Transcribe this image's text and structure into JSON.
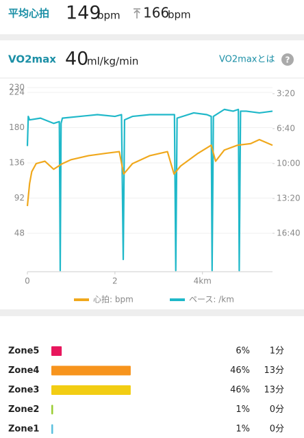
{
  "summary": {
    "label": "平均心拍",
    "average": "149",
    "average_unit": "bpm",
    "max": "166",
    "max_unit": "bpm"
  },
  "vo2max": {
    "label": "VO2max",
    "value": "40",
    "unit": "ml/kg/min",
    "link": "VO2maxとは",
    "help_icon": "?"
  },
  "chart_data": {
    "type": "line",
    "xlim": [
      0,
      5.6
    ],
    "xticks": [
      0,
      2,
      {
        "value": 4,
        "label": "4km"
      }
    ],
    "ylim": [
      0,
      230
    ],
    "yticks": [
      48,
      92,
      136,
      180,
      224,
      230
    ],
    "y2lim": [
      1220,
      165
    ],
    "y2ticks": [
      {
        "value": 200,
        "label": "3:20"
      },
      {
        "value": 400,
        "label": "6:40"
      },
      {
        "value": 600,
        "label": "10:00"
      },
      {
        "value": 800,
        "label": "13:20"
      },
      {
        "value": 1000,
        "label": "16:40"
      }
    ],
    "grid": true,
    "series": [
      {
        "name": "心拍: bpm",
        "color": "#f0a81c",
        "x": [
          0,
          0.05,
          0.1,
          0.2,
          0.4,
          0.6,
          0.8,
          1.0,
          1.4,
          1.8,
          2.1,
          2.2,
          2.4,
          2.8,
          3.2,
          3.35,
          3.5,
          3.9,
          4.2,
          4.3,
          4.5,
          4.8,
          5.1,
          5.3,
          5.6
        ],
        "values": [
          82,
          110,
          125,
          135,
          138,
          128,
          135,
          140,
          145,
          148,
          150,
          122,
          135,
          145,
          150,
          122,
          132,
          148,
          158,
          138,
          152,
          158,
          160,
          165,
          158
        ]
      },
      {
        "name": "ペース: /km",
        "color": "#1fb8c9",
        "axis": "y2",
        "x": [
          0,
          0.02,
          0.05,
          0.3,
          0.6,
          0.73,
          0.75,
          0.77,
          0.8,
          1.2,
          1.6,
          2.0,
          2.15,
          2.19,
          2.22,
          2.4,
          2.8,
          3.2,
          3.36,
          3.39,
          3.42,
          3.8,
          4.1,
          4.2,
          4.22,
          4.25,
          4.5,
          4.7,
          4.82,
          4.84,
          4.87,
          5.0,
          5.3,
          5.6
        ],
        "values": [
          500,
          330,
          350,
          340,
          370,
          360,
          1213,
          370,
          340,
          330,
          320,
          330,
          320,
          1150,
          350,
          330,
          320,
          320,
          320,
          1213,
          340,
          310,
          320,
          330,
          1213,
          330,
          290,
          300,
          290,
          1213,
          300,
          300,
          310,
          300
        ]
      }
    ]
  },
  "zones": {
    "names": [
      "Zone5",
      "Zone4",
      "Zone3",
      "Zone2",
      "Zone1"
    ],
    "colors": [
      "#e8175d",
      "#f7941d",
      "#f2cd13",
      "#9acd32",
      "#5bc0de"
    ],
    "values": [
      6,
      46,
      46,
      1,
      1
    ],
    "value_labels": [
      "6%",
      "46%",
      "46%",
      "1%",
      "1%"
    ],
    "times": [
      "1分",
      "13分",
      "13分",
      "0分",
      "0分"
    ]
  }
}
